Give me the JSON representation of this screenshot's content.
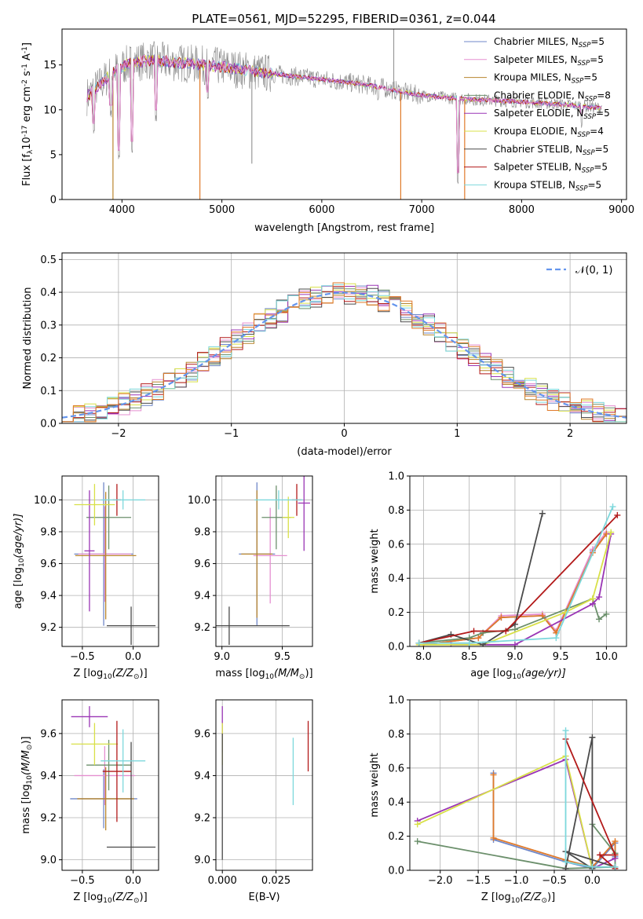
{
  "title": "PLATE=0561, MJD=52295, FIBERID=0361, z=0.044",
  "colors": [
    "#6f87c8",
    "#e58fd0",
    "#b8862e",
    "#6b8f6b",
    "#9a35b5",
    "#d8e048",
    "#4a4a4a",
    "#b31a1a",
    "#7dd8dc",
    "#e07a2a"
  ],
  "spectrum_panel": {
    "type": "line",
    "xlabel": "wavelength [Angstrom, rest frame]",
    "ylabel_parts": [
      "Flux [f",
      "λ",
      "10",
      "-17",
      " erg cm",
      "-2",
      " s",
      "-1",
      " A",
      "-1",
      "]"
    ],
    "xlim": [
      3400,
      9050
    ],
    "ylim": [
      0,
      19
    ],
    "xticks": [
      "4000",
      "5000",
      "6000",
      "7000",
      "8000",
      "9000"
    ],
    "yticks": [
      "0",
      "5",
      "10",
      "15"
    ],
    "xtick_values": [
      4000,
      5000,
      6000,
      7000,
      8000,
      9000
    ],
    "ytick_values": [
      0,
      5,
      10,
      15
    ],
    "legend": [
      {
        "label": "Chabrier MILES, N",
        "sub": "SSP",
        "suffix": "=5"
      },
      {
        "label": "Salpeter MILES, N",
        "sub": "SSP",
        "suffix": "=5"
      },
      {
        "label": "Kroupa MILES, N",
        "sub": "SSP",
        "suffix": "=5"
      },
      {
        "label": "Chabrier ELODIE, N",
        "sub": "SSP",
        "suffix": "=8"
      },
      {
        "label": "Salpeter ELODIE, N",
        "sub": "SSP",
        "suffix": "=5"
      },
      {
        "label": "Kroupa ELODIE, N",
        "sub": "SSP",
        "suffix": "=4"
      },
      {
        "label": "Chabrier STELIB, N",
        "sub": "SSP",
        "suffix": "=5"
      },
      {
        "label": "Salpeter STELIB, N",
        "sub": "SSP",
        "suffix": "=5"
      },
      {
        "label": "Kroupa STELIB, N",
        "sub": "SSP",
        "suffix": "=5"
      }
    ],
    "legend_position": "upper-right",
    "continuum": [
      [
        3650,
        11.5
      ],
      [
        3800,
        13.0
      ],
      [
        3900,
        14.2
      ],
      [
        4000,
        14.8
      ],
      [
        4100,
        15.3
      ],
      [
        4300,
        15.5
      ],
      [
        4500,
        15.3
      ],
      [
        4800,
        15.0
      ],
      [
        5000,
        14.8
      ],
      [
        5300,
        14.3
      ],
      [
        5600,
        13.9
      ],
      [
        6000,
        13.4
      ],
      [
        6300,
        13.0
      ],
      [
        6600,
        12.5
      ],
      [
        6800,
        12.0
      ],
      [
        7000,
        11.6
      ],
      [
        7300,
        11.3
      ],
      [
        7600,
        11.1
      ],
      [
        8000,
        10.9
      ],
      [
        8400,
        10.6
      ],
      [
        8800,
        10.2
      ]
    ],
    "dips": [
      [
        3720,
        7.0
      ],
      [
        3890,
        9.0
      ],
      [
        3970,
        4.0
      ],
      [
        4100,
        5.0
      ],
      [
        4340,
        8.5
      ],
      [
        4860,
        10.5
      ],
      [
        6563,
        10.8
      ],
      [
        7360,
        1.5
      ],
      [
        8600,
        8.0
      ]
    ],
    "spikes": [
      [
        3910,
        0.0
      ],
      [
        4780,
        0.0
      ],
      [
        6790,
        0.0
      ],
      [
        7430,
        0.0
      ],
      [
        6720,
        19.0
      ],
      [
        5300,
        4.0
      ]
    ]
  },
  "residual_panel": {
    "type": "histogram",
    "xlabel": "(data-model)/error",
    "ylabel": "Normed distribution",
    "xlim": [
      -2.5,
      2.5
    ],
    "ylim": [
      0,
      0.52
    ],
    "xticks": [
      "−2",
      "−1",
      "0",
      "1",
      "2"
    ],
    "yticks": [
      "0.0",
      "0.1",
      "0.2",
      "0.3",
      "0.4",
      "0.5"
    ],
    "xtick_values": [
      -2,
      -1,
      0,
      1,
      2
    ],
    "ytick_values": [
      0,
      0.1,
      0.2,
      0.3,
      0.4,
      0.5
    ],
    "legend_label": "𝒩(0, 1)",
    "legend_position": "upper-right",
    "bin_width": 0.1
  },
  "age_Z_panel": {
    "xlabel": "Z [log",
    "xlabel_sub": "10",
    "xlabel_rest": "(Z/Z",
    "xlabel_end": ")]",
    "ylabel": "age  [log",
    "ylabel_sub": "10",
    "ylabel_rest": "(age/yr)]",
    "xlim": [
      -0.7,
      0.25
    ],
    "ylim": [
      9.08,
      10.15
    ],
    "xticks": [
      "−0.5",
      "0.0"
    ],
    "xtick_values": [
      -0.5,
      0.0
    ],
    "yticks": [
      "9.2",
      "9.4",
      "9.6",
      "9.8",
      "10.0"
    ],
    "ytick_values": [
      9.2,
      9.4,
      9.6,
      9.8,
      10.0
    ],
    "points": [
      {
        "c": 0,
        "x": -0.29,
        "y": 9.66,
        "xe": 0.29,
        "ye": 0.45
      },
      {
        "c": 1,
        "x": -0.28,
        "y": 9.66,
        "xe": 0.26,
        "ye": 0.3
      },
      {
        "c": 2,
        "x": -0.27,
        "y": 9.65,
        "xe": 0.3,
        "ye": 0.4
      },
      {
        "c": 3,
        "x": -0.24,
        "y": 9.89,
        "xe": 0.22,
        "ye": 0.2
      },
      {
        "c": 4,
        "x": -0.43,
        "y": 9.68,
        "xe": 0.05,
        "ye": 0.38
      },
      {
        "c": 5,
        "x": -0.38,
        "y": 9.97,
        "xe": 0.2,
        "ye": 0.13
      },
      {
        "c": 6,
        "x": -0.02,
        "y": 9.21,
        "xe": 0.24,
        "ye": 0.12
      },
      {
        "c": 7,
        "x": -0.16,
        "y": 10.0,
        "xe": 0.04,
        "ye": 0.1
      },
      {
        "c": 8,
        "x": -0.1,
        "y": 10.0,
        "xe": 0.22,
        "ye": 0.06
      }
    ]
  },
  "age_mass_panel": {
    "xlabel": "mass [log",
    "xlabel_sub": "10",
    "xlabel_rest": "(M/M",
    "xlabel_end": ")]",
    "xlim": [
      8.95,
      9.75
    ],
    "ylim": [
      9.08,
      10.15
    ],
    "xticks": [
      "9.0",
      "9.5"
    ],
    "xtick_values": [
      9.0,
      9.5
    ],
    "yticks": [
      "9.2",
      "9.4",
      "9.6",
      "9.8",
      "10.0"
    ],
    "ytick_values": [
      9.2,
      9.4,
      9.6,
      9.8,
      10.0
    ],
    "points": [
      {
        "c": 0,
        "x": 9.29,
        "y": 9.66,
        "xe": 0.15,
        "ye": 0.45
      },
      {
        "c": 1,
        "x": 9.4,
        "y": 9.65,
        "xe": 0.14,
        "ye": 0.3
      },
      {
        "c": 2,
        "x": 9.29,
        "y": 9.66,
        "xe": 0.13,
        "ye": 0.4
      },
      {
        "c": 3,
        "x": 9.45,
        "y": 9.89,
        "xe": 0.12,
        "ye": 0.2
      },
      {
        "c": 4,
        "x": 9.68,
        "y": 9.98,
        "xe": 0.05,
        "ye": 0.3
      },
      {
        "c": 5,
        "x": 9.55,
        "y": 9.89,
        "xe": 0.05,
        "ye": 0.13
      },
      {
        "c": 6,
        "x": 9.06,
        "y": 9.21,
        "xe": 0.5,
        "ye": 0.12
      },
      {
        "c": 7,
        "x": 9.62,
        "y": 10.0,
        "xe": 0.04,
        "ye": 0.1
      },
      {
        "c": 8,
        "x": 9.47,
        "y": 10.0,
        "xe": 0.2,
        "ye": 0.06
      }
    ]
  },
  "massweight_age_panel": {
    "xlabel": "age  [log",
    "xlabel_sub": "10",
    "xlabel_rest": "(age/yr)]",
    "ylabel": "mass weight",
    "xlim": [
      7.85,
      10.22
    ],
    "ylim": [
      0,
      1.0
    ],
    "xticks": [
      "8.0",
      "8.5",
      "9.0",
      "9.5",
      "10.0"
    ],
    "xtick_values": [
      8.0,
      8.5,
      9.0,
      9.5,
      10.0
    ],
    "yticks": [
      "0.0",
      "0.2",
      "0.4",
      "0.6",
      "0.8",
      "1.0"
    ],
    "ytick_values": [
      0,
      0.2,
      0.4,
      0.6,
      0.8,
      1.0
    ],
    "series": [
      {
        "c": 0,
        "x": [
          8.0,
          8.6,
          8.85,
          9.3,
          9.45,
          9.85,
          10.0
        ],
        "y": [
          0.01,
          0.05,
          0.17,
          0.18,
          0.08,
          0.56,
          0.66
        ]
      },
      {
        "c": 1,
        "x": [
          8.0,
          8.6,
          8.85,
          9.3,
          9.45,
          9.85,
          10.0
        ],
        "y": [
          0.01,
          0.05,
          0.18,
          0.19,
          0.09,
          0.57,
          0.67
        ]
      },
      {
        "c": 9,
        "x": [
          8.0,
          8.6,
          8.85,
          9.3,
          9.45,
          9.85,
          10.0
        ],
        "y": [
          0.01,
          0.05,
          0.17,
          0.18,
          0.08,
          0.55,
          0.66
        ]
      },
      {
        "c": 3,
        "x": [
          7.95,
          8.5,
          8.65,
          9.0,
          9.85,
          9.92,
          10.0
        ],
        "y": [
          0.02,
          0.05,
          0.08,
          0.1,
          0.28,
          0.16,
          0.19
        ]
      },
      {
        "c": 4,
        "x": [
          8.3,
          8.65,
          9.0,
          9.85,
          9.92,
          10.05
        ],
        "y": [
          0.01,
          0.01,
          0.01,
          0.25,
          0.29,
          0.66
        ]
      },
      {
        "c": 5,
        "x": [
          7.95,
          8.65,
          9.55,
          9.85,
          10.05
        ],
        "y": [
          0.01,
          0.01,
          0.2,
          0.28,
          0.67
        ]
      },
      {
        "c": 6,
        "x": [
          7.95,
          8.3,
          8.65,
          9.0,
          9.3
        ],
        "y": [
          0.02,
          0.07,
          0.01,
          0.13,
          0.78
        ]
      },
      {
        "c": 7,
        "x": [
          7.95,
          8.55,
          8.9,
          10.12
        ],
        "y": [
          0.02,
          0.09,
          0.09,
          0.77
        ]
      },
      {
        "c": 8,
        "x": [
          7.95,
          8.5,
          9.45,
          10.07
        ],
        "y": [
          0.02,
          0.02,
          0.05,
          0.82
        ]
      }
    ]
  },
  "mass_Z_panel": {
    "xlabel": "Z [log",
    "xlabel_sub": "10",
    "xlabel_rest": "(Z/Z",
    "xlabel_end": ")]",
    "ylabel": "mass [log",
    "ylabel_sub": "10",
    "ylabel_rest": "(M/M",
    "ylabel_end": ")]",
    "xlim": [
      -0.7,
      0.25
    ],
    "ylim": [
      8.95,
      9.76
    ],
    "xticks": [
      "−0.5",
      "0.0"
    ],
    "xtick_values": [
      -0.5,
      0.0
    ],
    "yticks": [
      "9.0",
      "9.2",
      "9.4",
      "9.6"
    ],
    "ytick_values": [
      9.0,
      9.2,
      9.4,
      9.6
    ],
    "points": [
      {
        "c": 0,
        "x": -0.29,
        "y": 9.29,
        "xe": 0.33,
        "ye": 0.14
      },
      {
        "c": 1,
        "x": -0.28,
        "y": 9.4,
        "xe": 0.3,
        "ye": 0.14
      },
      {
        "c": 2,
        "x": -0.27,
        "y": 9.29,
        "xe": 0.28,
        "ye": 0.15
      },
      {
        "c": 3,
        "x": -0.24,
        "y": 9.45,
        "xe": 0.22,
        "ye": 0.12
      },
      {
        "c": 4,
        "x": -0.43,
        "y": 9.68,
        "xe": 0.18,
        "ye": 0.05
      },
      {
        "c": 5,
        "x": -0.38,
        "y": 9.55,
        "xe": 0.23,
        "ye": 0.1
      },
      {
        "c": 6,
        "x": -0.02,
        "y": 9.06,
        "xe": 0.24,
        "ye": 0.5
      },
      {
        "c": 7,
        "x": -0.16,
        "y": 9.42,
        "xe": 0.14,
        "ye": 0.24
      },
      {
        "c": 8,
        "x": -0.1,
        "y": 9.47,
        "xe": 0.22,
        "ye": 0.15
      }
    ]
  },
  "mass_ebv_panel": {
    "xlabel": "E(B-V)",
    "xlim": [
      -0.003,
      0.042
    ],
    "ylim": [
      8.95,
      9.76
    ],
    "xticks": [
      "0.000",
      "0.025"
    ],
    "xtick_values": [
      0.0,
      0.025
    ],
    "yticks": [
      "9.0",
      "9.2",
      "9.4",
      "9.6"
    ],
    "ytick_values": [
      9.0,
      9.2,
      9.4,
      9.6
    ],
    "points": [
      {
        "c": 4,
        "x": 0.0,
        "y": 9.62,
        "ye": 0.11
      },
      {
        "c": 5,
        "x": 0.0,
        "y": 9.55,
        "ye": 0.1
      },
      {
        "c": 6,
        "x": 0.0,
        "y": 9.3,
        "ye": 0.3
      },
      {
        "c": 8,
        "x": 0.033,
        "y": 9.42,
        "ye": 0.16
      },
      {
        "c": 7,
        "x": 0.04,
        "y": 9.54,
        "ye": 0.12
      }
    ]
  },
  "massweight_Z_panel": {
    "xlabel": "Z [log",
    "xlabel_sub": "10",
    "xlabel_rest": "(Z/Z",
    "xlabel_end": ")]",
    "ylabel": "mass weight",
    "xlim": [
      -2.4,
      0.45
    ],
    "ylim": [
      0,
      1.0
    ],
    "xticks": [
      "−2.0",
      "−1.5",
      "−1.0",
      "−0.5",
      "0.0"
    ],
    "xtick_values": [
      -2.0,
      -1.5,
      -1.0,
      -0.5,
      0.0
    ],
    "yticks": [
      "0.0",
      "0.2",
      "0.4",
      "0.6",
      "0.8",
      "1.0"
    ],
    "ytick_values": [
      0,
      0.2,
      0.4,
      0.6,
      0.8,
      1.0
    ],
    "series": [
      {
        "c": 0,
        "x": [
          -1.3,
          -1.3,
          -0.35,
          0.0,
          0.3,
          0.3
        ],
        "y": [
          0.57,
          0.18,
          0.05,
          0.01,
          0.16,
          0.08
        ]
      },
      {
        "c": 9,
        "x": [
          -1.3,
          -1.3,
          -0.35,
          0.0,
          0.3,
          0.3
        ],
        "y": [
          0.56,
          0.19,
          0.06,
          0.02,
          0.17,
          0.09
        ]
      },
      {
        "c": 3,
        "x": [
          -2.3,
          -0.35,
          0.3,
          0.3,
          0.0
        ],
        "y": [
          0.17,
          0.01,
          0.02,
          0.1,
          0.27
        ]
      },
      {
        "c": 4,
        "x": [
          -2.3,
          -0.35,
          0.0,
          0.3
        ],
        "y": [
          0.29,
          0.65,
          0.01,
          0.07
        ]
      },
      {
        "c": 5,
        "x": [
          -2.3,
          -0.35,
          0.0
        ],
        "y": [
          0.27,
          0.67,
          0.01
        ]
      },
      {
        "c": 6,
        "x": [
          -0.35,
          0.0,
          0.0,
          -0.35,
          0.3
        ],
        "y": [
          0.01,
          0.78,
          0.01,
          0.11,
          0.02
        ]
      },
      {
        "c": 7,
        "x": [
          -0.35,
          0.3,
          0.1,
          0.3
        ],
        "y": [
          0.77,
          0.09,
          0.09,
          0.01
        ]
      },
      {
        "c": 8,
        "x": [
          -0.35,
          -0.35,
          0.0,
          0.3
        ],
        "y": [
          0.82,
          0.05,
          0.02,
          0.02
        ]
      }
    ]
  }
}
